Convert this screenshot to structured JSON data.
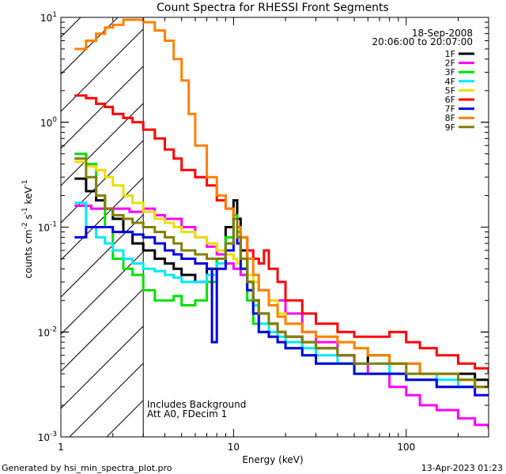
{
  "chart_data": {
    "type": "line",
    "title": "Count Spectra for RHESSI Front Segments",
    "xlabel": "Energy (keV)",
    "ylabel_parts": [
      "counts cm",
      "-2",
      " s",
      "-1",
      " keV",
      "-1"
    ],
    "xscale": "log",
    "yscale": "log",
    "xlim": [
      1,
      300
    ],
    "ylim": [
      0.001,
      10
    ],
    "x_ticks": [
      {
        "v": 1,
        "label": "1"
      },
      {
        "v": 10,
        "label": "10"
      },
      {
        "v": 100,
        "label": "100"
      }
    ],
    "y_ticks": [
      {
        "v": 10,
        "base": "10",
        "exp": "1"
      },
      {
        "v": 1,
        "base": "10",
        "exp": "0"
      },
      {
        "v": 0.1,
        "base": "10",
        "exp": "-1"
      },
      {
        "v": 0.01,
        "base": "10",
        "exp": "-2"
      },
      {
        "v": 0.001,
        "base": "10",
        "exp": "-3"
      }
    ],
    "date": "18-Sep-2008",
    "time_range": "20:06:00 to 20:07:00",
    "annotations": [
      "Includes Background",
      "Att A0, FDecim 1"
    ],
    "hatched_below_keV": 3,
    "series": [
      {
        "name": "1F",
        "color": "#000000",
        "x": [
          1.2,
          1.4,
          1.6,
          1.8,
          2,
          2.3,
          2.6,
          3,
          3.5,
          4,
          4.5,
          5,
          6,
          7,
          8,
          9,
          10,
          10.5,
          11,
          12,
          13,
          14,
          16,
          18,
          20,
          25,
          30,
          40,
          50,
          60,
          80,
          100,
          120,
          150,
          200,
          250,
          300
        ],
        "y": [
          0.29,
          0.22,
          0.18,
          0.15,
          0.12,
          0.09,
          0.07,
          0.06,
          0.05,
          0.045,
          0.04,
          0.035,
          0.03,
          0.04,
          0.05,
          0.1,
          0.18,
          0.12,
          0.06,
          0.03,
          0.02,
          0.015,
          0.012,
          0.01,
          0.009,
          0.008,
          0.007,
          0.006,
          0.005,
          0.006,
          0.005,
          0.005,
          0.004,
          0.004,
          0.004,
          0.0035,
          0.003
        ]
      },
      {
        "name": "2F",
        "color": "#ff00ff",
        "x": [
          1.2,
          1.5,
          2,
          2.5,
          3,
          3.5,
          4,
          5,
          6,
          7,
          8,
          9,
          10,
          11,
          12,
          14,
          16,
          20,
          25,
          30,
          40,
          50,
          60,
          80,
          100,
          120,
          150,
          200,
          250,
          300
        ],
        "y": [
          0.16,
          0.15,
          0.15,
          0.14,
          0.15,
          0.13,
          0.12,
          0.1,
          0.08,
          0.065,
          0.055,
          0.045,
          0.04,
          0.035,
          0.03,
          0.025,
          0.02,
          0.015,
          0.01,
          0.008,
          0.006,
          0.005,
          0.004,
          0.003,
          0.0025,
          0.002,
          0.0018,
          0.0015,
          0.0013,
          0.0012
        ]
      },
      {
        "name": "3F",
        "color": "#00e000",
        "x": [
          1.2,
          1.4,
          1.6,
          1.8,
          2,
          2.3,
          2.6,
          3,
          3.5,
          4,
          4.5,
          5,
          6,
          7,
          8,
          9,
          10,
          10.5,
          11,
          12,
          13,
          14,
          16,
          18,
          20,
          25,
          30,
          40,
          50,
          60,
          80,
          100,
          120,
          150,
          200,
          250,
          300
        ],
        "y": [
          0.5,
          0.4,
          0.2,
          0.1,
          0.05,
          0.04,
          0.035,
          0.025,
          0.02,
          0.02,
          0.022,
          0.018,
          0.02,
          0.03,
          0.05,
          0.08,
          0.13,
          0.09,
          0.05,
          0.02,
          0.012,
          0.01,
          0.009,
          0.008,
          0.007,
          0.006,
          0.005,
          0.005,
          0.004,
          0.004,
          0.004,
          0.0035,
          0.0035,
          0.003,
          0.003,
          0.003,
          0.003
        ]
      },
      {
        "name": "4F",
        "color": "#00e8ff",
        "x": [
          1.2,
          1.4,
          1.6,
          1.8,
          2,
          2.3,
          2.6,
          3,
          3.5,
          4,
          4.5,
          5,
          6,
          7,
          8,
          9,
          10,
          10.5,
          11,
          12,
          13,
          14,
          16,
          18,
          20,
          25,
          30,
          40,
          50,
          60,
          80,
          100,
          120,
          150,
          200,
          250,
          300
        ],
        "y": [
          0.17,
          0.1,
          0.08,
          0.07,
          0.06,
          0.05,
          0.045,
          0.04,
          0.038,
          0.035,
          0.033,
          0.03,
          0.03,
          0.035,
          0.045,
          0.07,
          0.12,
          0.08,
          0.04,
          0.025,
          0.018,
          0.012,
          0.01,
          0.009,
          0.008,
          0.007,
          0.006,
          0.005,
          0.005,
          0.005,
          0.004,
          0.004,
          0.004,
          0.0035,
          0.003,
          0.003,
          0.003
        ]
      },
      {
        "name": "5F",
        "color": "#e8e000",
        "x": [
          1.2,
          1.4,
          1.6,
          1.8,
          2,
          2.3,
          2.6,
          3,
          3.5,
          4,
          4.5,
          5,
          6,
          7,
          8,
          9,
          10,
          10.5,
          11,
          12,
          13,
          14,
          16,
          18,
          20,
          25,
          30,
          40,
          50,
          60,
          80,
          100,
          120,
          150,
          200,
          250,
          300
        ],
        "y": [
          0.42,
          0.38,
          0.35,
          0.3,
          0.25,
          0.2,
          0.17,
          0.14,
          0.12,
          0.11,
          0.1,
          0.09,
          0.08,
          0.07,
          0.06,
          0.055,
          0.05,
          0.045,
          0.04,
          0.035,
          0.03,
          0.025,
          0.02,
          0.015,
          0.012,
          0.01,
          0.009,
          0.008,
          0.007,
          0.006,
          0.005,
          0.005,
          0.004,
          0.004,
          0.0035,
          0.003,
          0.003
        ]
      },
      {
        "name": "6F",
        "color": "#ff0000",
        "x": [
          1.2,
          1.4,
          1.6,
          1.8,
          2,
          2.3,
          2.6,
          3,
          3.5,
          4,
          4.5,
          5,
          6,
          7,
          8,
          9,
          10,
          10.5,
          11,
          12,
          13,
          14,
          15,
          16,
          18,
          20,
          25,
          30,
          40,
          50,
          60,
          80,
          100,
          120,
          150,
          200,
          250,
          300
        ],
        "y": [
          1.8,
          1.7,
          1.5,
          1.4,
          1.2,
          1.1,
          1.0,
          0.85,
          0.7,
          0.55,
          0.45,
          0.35,
          0.3,
          0.25,
          0.18,
          0.15,
          0.12,
          0.1,
          0.08,
          0.06,
          0.05,
          0.045,
          0.06,
          0.04,
          0.03,
          0.02,
          0.015,
          0.012,
          0.01,
          0.009,
          0.009,
          0.01,
          0.008,
          0.007,
          0.006,
          0.005,
          0.0045,
          0.004
        ]
      },
      {
        "name": "7F",
        "color": "#0000e0",
        "x": [
          1.2,
          1.4,
          1.6,
          1.8,
          2,
          2.3,
          2.6,
          3,
          3.5,
          4,
          4.5,
          5,
          6,
          7,
          7.5,
          8,
          9,
          10,
          10.5,
          11,
          12,
          13,
          14,
          16,
          18,
          20,
          25,
          30,
          40,
          50,
          60,
          80,
          100,
          120,
          150,
          200,
          250,
          300
        ],
        "y": [
          0.08,
          0.1,
          0.1,
          0.1,
          0.09,
          0.09,
          0.085,
          0.08,
          0.07,
          0.06,
          0.055,
          0.05,
          0.045,
          0.04,
          0.008,
          0.04,
          0.06,
          0.12,
          0.07,
          0.04,
          0.025,
          0.015,
          0.01,
          0.009,
          0.008,
          0.007,
          0.006,
          0.005,
          0.005,
          0.004,
          0.004,
          0.004,
          0.0035,
          0.0035,
          0.003,
          0.003,
          0.0025,
          0.0025
        ]
      },
      {
        "name": "8F",
        "color": "#ff8000",
        "x": [
          1.2,
          1.4,
          1.6,
          1.8,
          2,
          2.3,
          2.6,
          3,
          3.5,
          4,
          4.5,
          5,
          5.5,
          6,
          7,
          8,
          9,
          10,
          10.5,
          11,
          12,
          13,
          14,
          16,
          18,
          20,
          25,
          30,
          40,
          50,
          60,
          80,
          100,
          120,
          150,
          200,
          250,
          300
        ],
        "y": [
          5,
          6,
          7,
          8,
          8.5,
          9.5,
          9.5,
          9,
          7.5,
          6,
          4,
          2.5,
          1.2,
          0.6,
          0.3,
          0.2,
          0.15,
          0.12,
          0.1,
          0.08,
          0.05,
          0.035,
          0.025,
          0.018,
          0.014,
          0.012,
          0.01,
          0.009,
          0.008,
          0.007,
          0.006,
          0.005,
          0.005,
          0.004,
          0.004,
          0.0035,
          0.003,
          0.003
        ]
      },
      {
        "name": "9F",
        "color": "#808000",
        "x": [
          1.2,
          1.4,
          1.6,
          1.8,
          2,
          2.3,
          2.6,
          3,
          3.5,
          4,
          4.5,
          5,
          6,
          7,
          8,
          9,
          10,
          10.5,
          11,
          12,
          13,
          14,
          16,
          18,
          20,
          25,
          30,
          40,
          50,
          60,
          80,
          100,
          120,
          150,
          200,
          250,
          300
        ],
        "y": [
          0.45,
          0.3,
          0.2,
          0.15,
          0.13,
          0.12,
          0.11,
          0.1,
          0.09,
          0.08,
          0.07,
          0.06,
          0.055,
          0.05,
          0.05,
          0.07,
          0.12,
          0.08,
          0.05,
          0.03,
          0.02,
          0.015,
          0.012,
          0.01,
          0.009,
          0.008,
          0.007,
          0.006,
          0.005,
          0.005,
          0.005,
          0.004,
          0.004,
          0.004,
          0.0035,
          0.003,
          0.003
        ]
      }
    ]
  },
  "footer": {
    "generated_by": "Generated by hsi_min_spectra_plot.pro",
    "timestamp": "13-Apr-2023 01:23"
  }
}
